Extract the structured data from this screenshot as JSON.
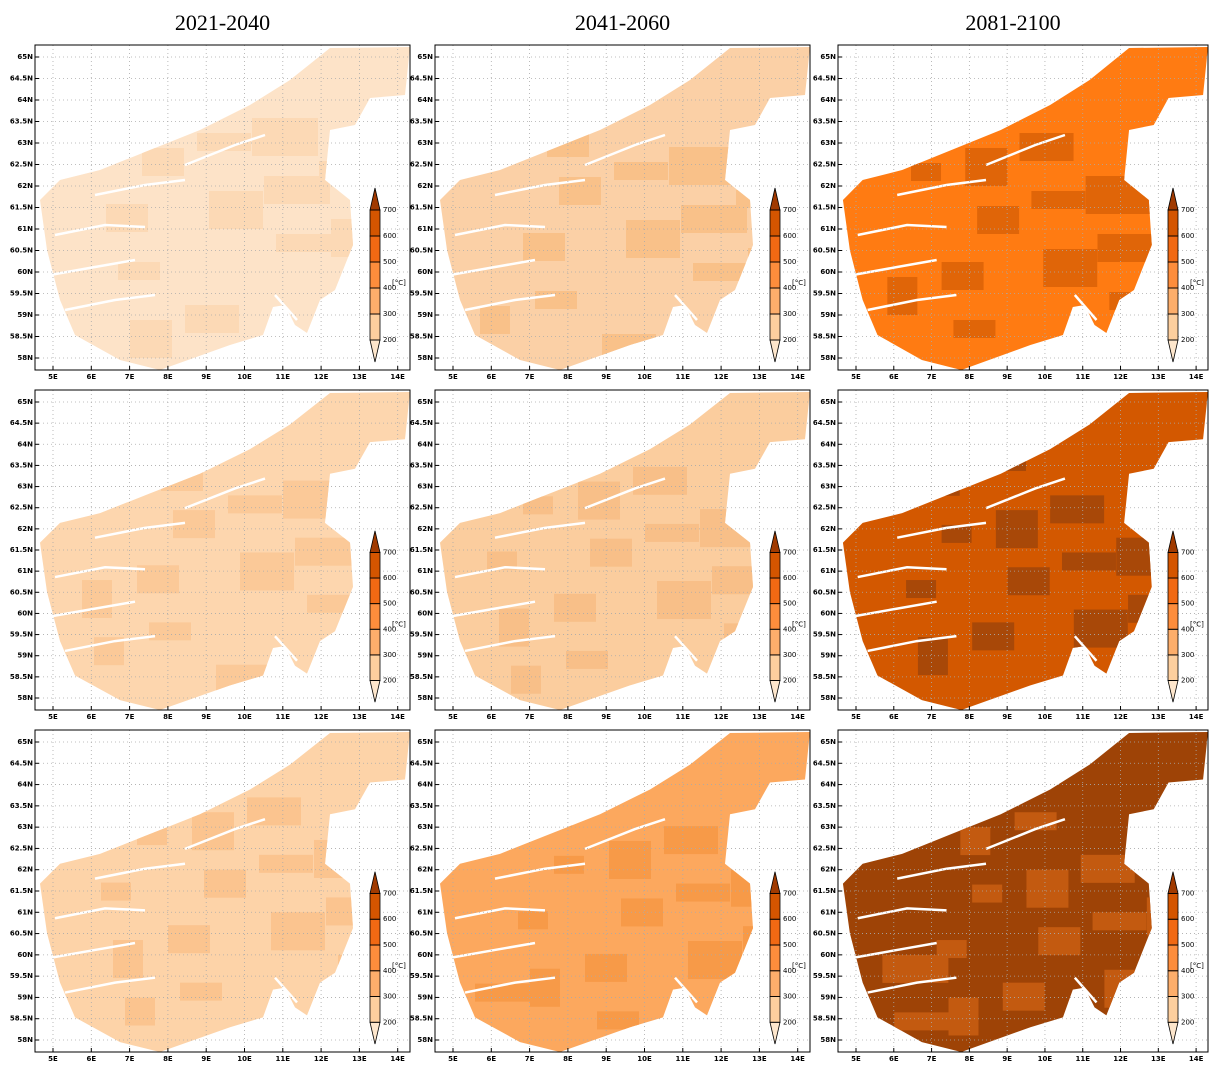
{
  "columns": [
    "2021-2040",
    "2041-2060",
    "2081-2100"
  ],
  "lat_labels": [
    "65N",
    "64.5N",
    "64N",
    "63.5N",
    "63N",
    "62.5N",
    "62N",
    "61.5N",
    "61N",
    "60.5N",
    "60N",
    "59.5N",
    "59N",
    "58.5N",
    "58N"
  ],
  "lon_labels": [
    "5E",
    "6E",
    "7E",
    "8E",
    "9E",
    "10E",
    "11E",
    "12E",
    "13E",
    "14E"
  ],
  "colorbar": {
    "ticks": [
      200,
      300,
      400,
      500,
      600,
      700
    ],
    "unit": "[°C]"
  }
}
